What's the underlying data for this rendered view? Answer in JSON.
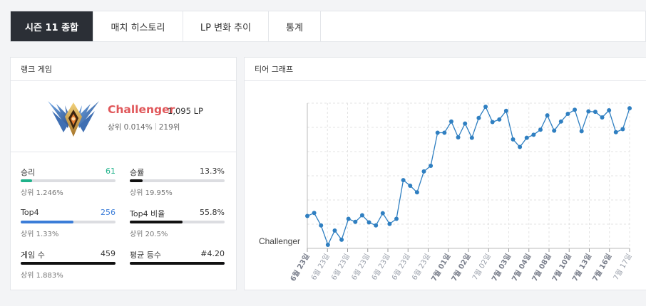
{
  "tabs": [
    {
      "label": "시즌 11 종합",
      "active": true
    },
    {
      "label": "매치 히스토리",
      "active": false
    },
    {
      "label": "LP 변화 추이",
      "active": false
    },
    {
      "label": "통계",
      "active": false
    }
  ],
  "rank_panel": {
    "title": "랭크 게임",
    "tier": "Challenger",
    "lp": "1,095 LP",
    "rank_percent": "상위 0.014%",
    "rank_position": "219위",
    "stats": {
      "wins": {
        "label": "승리",
        "value": "61",
        "sub": "상위 1.246%",
        "fill": 0.12,
        "color": "#1fb28a",
        "value_color": "#1fb28a"
      },
      "winrate": {
        "label": "승률",
        "value": "13.3%",
        "sub": "상위 19.95%",
        "fill": 0.133,
        "color": "#111111",
        "value_color": "#333333"
      },
      "top4": {
        "label": "Top4",
        "value": "256",
        "sub": "상위 1.33%",
        "fill": 0.56,
        "color": "#3b7dd8",
        "value_color": "#3b7dd8"
      },
      "top4rate": {
        "label": "Top4 비율",
        "value": "55.8%",
        "sub": "상위 20.5%",
        "fill": 0.558,
        "color": "#111111",
        "value_color": "#333333"
      },
      "games": {
        "label": "게임 수",
        "value": "459",
        "sub": "상위 1.883%",
        "fill": 1.0,
        "color": "#111111",
        "value_color": "#333333"
      },
      "avg": {
        "label": "평균 등수",
        "value": "#4.20",
        "sub": "",
        "fill": 1.0,
        "color": "#111111",
        "value_color": "#333333"
      }
    }
  },
  "graph_panel": {
    "title": "티어 그래프"
  },
  "chart_data": {
    "type": "line",
    "y_tick_label": "Challenger",
    "grid": true,
    "line_color": "#2f7fc1",
    "x_tick_labels": [
      {
        "text": "6월 23일",
        "bold": true
      },
      {
        "text": "6월 23일",
        "bold": false
      },
      {
        "text": "6월 23일",
        "bold": false
      },
      {
        "text": "6월 23일",
        "bold": false
      },
      {
        "text": "6월 23일",
        "bold": false
      },
      {
        "text": "6월 23일",
        "bold": false
      },
      {
        "text": "6월 23일",
        "bold": false
      },
      {
        "text": "7월 01일",
        "bold": true
      },
      {
        "text": "7월 02일",
        "bold": true
      },
      {
        "text": "7월 02일",
        "bold": false
      },
      {
        "text": "7월 03일",
        "bold": true
      },
      {
        "text": "7월 04일",
        "bold": true
      },
      {
        "text": "7월 08일",
        "bold": true
      },
      {
        "text": "7월 10일",
        "bold": true
      },
      {
        "text": "7월 13일",
        "bold": true
      },
      {
        "text": "7월 16일",
        "bold": true
      },
      {
        "text": "7월 17일",
        "bold": false
      }
    ],
    "values": [
      335,
      395,
      150,
      -230,
      50,
      -130,
      280,
      220,
      350,
      210,
      150,
      390,
      180,
      280,
      1040,
      930,
      800,
      1210,
      1320,
      1970,
      1970,
      2190,
      1880,
      2150,
      1870,
      2260,
      2480,
      2180,
      2230,
      2400,
      1840,
      1690,
      1870,
      1930,
      2030,
      2310,
      2010,
      2190,
      2340,
      2420,
      2000,
      2390,
      2380,
      2270,
      2410,
      1980,
      2040,
      2450
    ]
  }
}
